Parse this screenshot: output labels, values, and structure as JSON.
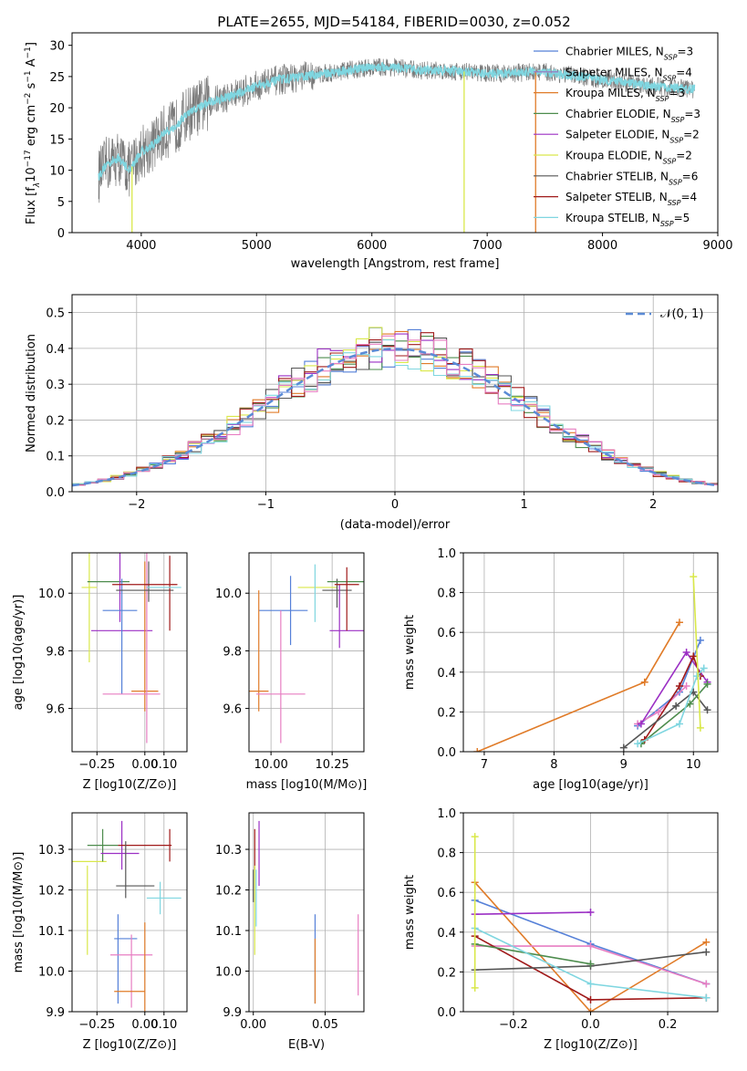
{
  "chart_data": [
    {
      "id": "spectrum",
      "type": "line",
      "title": "PLATE=2655, MJD=54184, FIBERID=0030, z=0.052",
      "xlabel": "wavelength [Angstrom, rest frame]",
      "ylabel_parts": [
        "Flux [f",
        "λ",
        "10",
        "−17",
        " erg cm",
        "−2",
        " s",
        "−1",
        " A",
        "−1",
        "]"
      ],
      "xlim": [
        3400,
        9000
      ],
      "ylim": [
        0,
        32
      ],
      "xticks": [
        4000,
        5000,
        6000,
        7000,
        8000,
        9000
      ],
      "yticks": [
        0,
        5,
        10,
        15,
        20,
        25,
        30
      ],
      "legend_position": "top-right",
      "envelope": {
        "x": [
          3630,
          3700,
          3800,
          3900,
          4000,
          4100,
          4200,
          4300,
          4400,
          4500,
          4600,
          4800,
          5000,
          5200,
          5400,
          5600,
          5800,
          6000,
          6200,
          6400,
          6600,
          6800,
          7000,
          7200,
          7400,
          7600,
          7800,
          8000,
          8200,
          8400,
          8600,
          8800
        ],
        "y": [
          9,
          11,
          12,
          10,
          13,
          14,
          16,
          17,
          19,
          20,
          21,
          22,
          23.5,
          24.5,
          25,
          25.5,
          26,
          26.5,
          26.5,
          26,
          26,
          25.8,
          25.5,
          25.5,
          25.8,
          25.5,
          25,
          24.5,
          24,
          23.5,
          23.2,
          23
        ]
      },
      "drops": [
        {
          "x": 3920,
          "y": 0
        },
        {
          "x": 6800,
          "y": 0
        },
        {
          "x": 7420,
          "y": 0
        }
      ],
      "grid": false
    },
    {
      "id": "residuals",
      "type": "histogram",
      "xlabel": "(data-model)/error",
      "ylabel": "Normed distribution",
      "xlim": [
        -2.5,
        2.5
      ],
      "ylim": [
        0,
        0.55
      ],
      "xticks": [
        -2,
        -1,
        0,
        1,
        2
      ],
      "yticks": [
        0,
        0.1,
        0.2,
        0.3,
        0.4,
        0.5
      ],
      "grid": true,
      "legend_position": "top-right",
      "reference_label": "𝒩(0, 1)",
      "bin_width": 0.1
    },
    {
      "id": "age-vs-Z",
      "type": "errorbar",
      "xlabel": "Z [log10(Z/Z⊙)]",
      "ylabel": "age  [log10(age/yr)]",
      "xlim": [
        -0.38,
        0.22
      ],
      "ylim": [
        9.45,
        10.14
      ],
      "xticks": [
        -0.25,
        0,
        0.1
      ],
      "yticks": [
        9.6,
        9.8,
        10.0
      ],
      "grid": true,
      "points": [
        {
          "c": "#d9e84a",
          "x": -0.29,
          "y": 10.02,
          "xe": 0.04,
          "ye": 0.26
        },
        {
          "c": "#4d8c4d",
          "x": -0.19,
          "y": 10.04,
          "xe": 0.11,
          "ye": 0.0
        },
        {
          "c": "#9b2fc4",
          "x": -0.12,
          "y": 9.87,
          "xe": 0.16,
          "ye": 0.0
        },
        {
          "c": "#9b2fc4",
          "x": -0.13,
          "y": 10.02,
          "xe": 0.0,
          "ye": 0.12
        },
        {
          "c": "#5580d8",
          "x": -0.13,
          "y": 9.94,
          "xe": 0.09,
          "ye": 0.0
        },
        {
          "c": "#5580d8",
          "x": -0.12,
          "y": 9.85,
          "xe": 0.0,
          "ye": 0.2
        },
        {
          "c": "#e07b28",
          "x": 0.0,
          "y": 9.66,
          "xe": 0.07,
          "ye": 0.0
        },
        {
          "c": "#e07b28",
          "x": 0.0,
          "y": 9.85,
          "xe": 0.0,
          "ye": 0.26
        },
        {
          "c": "#e77ec2",
          "x": -0.07,
          "y": 9.65,
          "xe": 0.15,
          "ye": 0.0
        },
        {
          "c": "#e77ec2",
          "x": 0.01,
          "y": 9.85,
          "xe": 0.0,
          "ye": 0.37
        },
        {
          "c": "#555555",
          "x": 0.0,
          "y": 10.01,
          "xe": 0.15,
          "ye": 0.0
        },
        {
          "c": "#555555",
          "x": 0.02,
          "y": 10.04,
          "xe": 0.0,
          "ye": 0.07
        },
        {
          "c": "#a01a1a",
          "x": 0.0,
          "y": 10.03,
          "xe": 0.17,
          "ye": 0.0
        },
        {
          "c": "#a01a1a",
          "x": 0.13,
          "y": 10.0,
          "xe": 0.0,
          "ye": 0.13
        },
        {
          "c": "#7fd6e0",
          "x": 0.1,
          "y": 10.02,
          "xe": 0.09,
          "ye": 0.0
        }
      ]
    },
    {
      "id": "age-vs-mass",
      "type": "errorbar",
      "xlabel": "mass [log10(M/M⊙)]",
      "ylabel": "",
      "xlim": [
        9.91,
        10.38
      ],
      "ylim": [
        9.45,
        10.14
      ],
      "xticks": [
        10.0,
        10.25
      ],
      "yticks": [
        9.6,
        9.8,
        10.0
      ],
      "grid": true,
      "points": [
        {
          "c": "#5580d8",
          "x": 10.05,
          "y": 9.94,
          "xe": 0.1,
          "ye": 0.0
        },
        {
          "c": "#5580d8",
          "x": 10.08,
          "y": 9.94,
          "xe": 0.0,
          "ye": 0.12
        },
        {
          "c": "#e07b28",
          "x": 9.95,
          "y": 9.66,
          "xe": 0.04,
          "ye": 0.0
        },
        {
          "c": "#e07b28",
          "x": 9.95,
          "y": 9.8,
          "xe": 0.0,
          "ye": 0.21
        },
        {
          "c": "#e77ec2",
          "x": 10.04,
          "y": 9.65,
          "xe": 0.1,
          "ye": 0.0
        },
        {
          "c": "#e77ec2",
          "x": 10.04,
          "y": 9.71,
          "xe": 0.0,
          "ye": 0.23
        },
        {
          "c": "#d9e84a",
          "x": 10.19,
          "y": 10.02,
          "xe": 0.08,
          "ye": 0.0
        },
        {
          "c": "#7fd6e0",
          "x": 10.18,
          "y": 10.0,
          "xe": 0.0,
          "ye": 0.1
        },
        {
          "c": "#555555",
          "x": 10.27,
          "y": 10.01,
          "xe": 0.06,
          "ye": 0.0
        },
        {
          "c": "#555555",
          "x": 10.27,
          "y": 10.0,
          "xe": 0.0,
          "ye": 0.05
        },
        {
          "c": "#4d8c4d",
          "x": 10.31,
          "y": 10.04,
          "xe": 0.08,
          "ye": 0.0
        },
        {
          "c": "#9b2fc4",
          "x": 10.31,
          "y": 9.87,
          "xe": 0.07,
          "ye": 0.0
        },
        {
          "c": "#9b2fc4",
          "x": 10.28,
          "y": 9.92,
          "xe": 0.0,
          "ye": 0.11
        },
        {
          "c": "#a01a1a",
          "x": 10.31,
          "y": 10.03,
          "xe": 0.05,
          "ye": 0.0
        },
        {
          "c": "#a01a1a",
          "x": 10.31,
          "y": 9.98,
          "xe": 0.0,
          "ye": 0.11
        }
      ]
    },
    {
      "id": "weight-vs-age",
      "type": "line",
      "xlabel": "age  [log10(age/yr)]",
      "ylabel": "mass weight",
      "xlim": [
        6.7,
        10.35
      ],
      "ylim": [
        0,
        1
      ],
      "xticks": [
        7,
        8,
        9,
        10
      ],
      "yticks": [
        0.0,
        0.2,
        0.4,
        0.6,
        0.8,
        1.0
      ],
      "grid": true,
      "series": [
        {
          "c": "#e07b28",
          "x": [
            6.9,
            9.3,
            9.8
          ],
          "y": [
            0.0,
            0.35,
            0.65
          ]
        },
        {
          "c": "#5580d8",
          "x": [
            9.2,
            9.8,
            10.1
          ],
          "y": [
            0.13,
            0.3,
            0.56
          ]
        },
        {
          "c": "#e77ec2",
          "x": [
            9.2,
            9.5,
            9.9
          ],
          "y": [
            0.14,
            0.2,
            0.33
          ]
        },
        {
          "c": "#9b2fc4",
          "x": [
            9.25,
            9.9,
            10.2
          ],
          "y": [
            0.14,
            0.5,
            0.35
          ]
        },
        {
          "c": "#a01a1a",
          "x": [
            9.3,
            9.8,
            10.0,
            10.1
          ],
          "y": [
            0.06,
            0.33,
            0.48,
            0.38
          ]
        },
        {
          "c": "#555555",
          "x": [
            9.0,
            9.75,
            10.0,
            10.2
          ],
          "y": [
            0.02,
            0.23,
            0.3,
            0.21
          ]
        },
        {
          "c": "#4d8c4d",
          "x": [
            9.25,
            9.95,
            10.2
          ],
          "y": [
            0.04,
            0.24,
            0.34
          ]
        },
        {
          "c": "#7fd6e0",
          "x": [
            9.2,
            9.8,
            10.05,
            10.15
          ],
          "y": [
            0.04,
            0.14,
            0.38,
            0.42
          ]
        },
        {
          "c": "#d9e84a",
          "x": [
            10.0,
            10.1
          ],
          "y": [
            0.88,
            0.12
          ]
        }
      ]
    },
    {
      "id": "mass-vs-Z",
      "type": "errorbar",
      "xlabel": "Z [log10(Z/Z⊙)]",
      "ylabel": "mass [log10(M/M⊙)]",
      "xlim": [
        -0.38,
        0.22
      ],
      "ylim": [
        9.9,
        10.39
      ],
      "xticks": [
        -0.25,
        0,
        0.1
      ],
      "yticks": [
        9.9,
        10.0,
        10.1,
        10.2,
        10.3
      ],
      "grid": true,
      "points": [
        {
          "c": "#d9e84a",
          "x": -0.3,
          "y": 10.27,
          "xe": 0.1,
          "ye": 0.0
        },
        {
          "c": "#d9e84a",
          "x": -0.3,
          "y": 10.15,
          "xe": 0.0,
          "ye": 0.11
        },
        {
          "c": "#4d8c4d",
          "x": -0.22,
          "y": 10.31,
          "xe": 0.08,
          "ye": 0.0
        },
        {
          "c": "#4d8c4d",
          "x": -0.22,
          "y": 10.31,
          "xe": 0.0,
          "ye": 0.04
        },
        {
          "c": "#9b2fc4",
          "x": -0.13,
          "y": 10.29,
          "xe": 0.1,
          "ye": 0.0
        },
        {
          "c": "#9b2fc4",
          "x": -0.12,
          "y": 10.31,
          "xe": 0.0,
          "ye": 0.06
        },
        {
          "c": "#a01a1a",
          "x": 0.0,
          "y": 10.31,
          "xe": 0.14,
          "ye": 0.0
        },
        {
          "c": "#a01a1a",
          "x": 0.13,
          "y": 10.31,
          "xe": 0.0,
          "ye": 0.04
        },
        {
          "c": "#555555",
          "x": -0.05,
          "y": 10.21,
          "xe": 0.1,
          "ye": 0.0
        },
        {
          "c": "#555555",
          "x": -0.1,
          "y": 10.25,
          "xe": 0.0,
          "ye": 0.07
        },
        {
          "c": "#7fd6e0",
          "x": 0.1,
          "y": 10.18,
          "xe": 0.09,
          "ye": 0.0
        },
        {
          "c": "#7fd6e0",
          "x": 0.08,
          "y": 10.18,
          "xe": 0.0,
          "ye": 0.04
        },
        {
          "c": "#5580d8",
          "x": -0.1,
          "y": 10.08,
          "xe": 0.06,
          "ye": 0.0
        },
        {
          "c": "#5580d8",
          "x": -0.14,
          "y": 10.03,
          "xe": 0.0,
          "ye": 0.11
        },
        {
          "c": "#e77ec2",
          "x": -0.07,
          "y": 10.04,
          "xe": 0.11,
          "ye": 0.0
        },
        {
          "c": "#e77ec2",
          "x": -0.07,
          "y": 10.0,
          "xe": 0.0,
          "ye": 0.09
        },
        {
          "c": "#e07b28",
          "x": -0.08,
          "y": 9.95,
          "xe": 0.08,
          "ye": 0.0
        },
        {
          "c": "#e07b28",
          "x": 0.0,
          "y": 10.0,
          "xe": 0.0,
          "ye": 0.12
        }
      ]
    },
    {
      "id": "mass-vs-ebv",
      "type": "errorbar",
      "xlabel": "E(B-V)",
      "ylabel": "",
      "xlim": [
        -0.003,
        0.077
      ],
      "ylim": [
        9.9,
        10.39
      ],
      "xticks": [
        0.0,
        0.05
      ],
      "yticks": [
        9.9,
        10.0,
        10.1,
        10.2,
        10.3
      ],
      "grid": true,
      "points": [
        {
          "c": "#a01a1a",
          "x": 0.001,
          "y": 10.3,
          "xe": 0.0,
          "ye": 0.05
        },
        {
          "c": "#9b2fc4",
          "x": 0.004,
          "y": 10.29,
          "xe": 0.0,
          "ye": 0.08
        },
        {
          "c": "#7fd6e0",
          "x": 0.002,
          "y": 10.18,
          "xe": 0.0,
          "ye": 0.07
        },
        {
          "c": "#d9e84a",
          "x": 0.001,
          "y": 10.15,
          "xe": 0.0,
          "ye": 0.11
        },
        {
          "c": "#555555",
          "x": 0.0,
          "y": 10.21,
          "xe": 0.0,
          "ye": 0.04
        },
        {
          "c": "#5580d8",
          "x": 0.043,
          "y": 10.03,
          "xe": 0.0,
          "ye": 0.11
        },
        {
          "c": "#e07b28",
          "x": 0.043,
          "y": 10.0,
          "xe": 0.0,
          "ye": 0.08
        },
        {
          "c": "#e77ec2",
          "x": 0.073,
          "y": 10.04,
          "xe": 0.0,
          "ye": 0.1
        }
      ]
    },
    {
      "id": "weight-vs-Z",
      "type": "line",
      "xlabel": "Z [log10(Z/Z⊙)]",
      "ylabel": "mass weight",
      "xlim": [
        -0.33,
        0.33
      ],
      "ylim": [
        0,
        1
      ],
      "xticks": [
        -0.2,
        0.0,
        0.2
      ],
      "yticks": [
        0.0,
        0.2,
        0.4,
        0.6,
        0.8,
        1.0
      ],
      "grid": true,
      "series": [
        {
          "c": "#5580d8",
          "x": [
            -0.3,
            0.0,
            0.3
          ],
          "y": [
            0.56,
            0.34,
            0.14
          ]
        },
        {
          "c": "#e07b28",
          "x": [
            -0.3,
            0.0,
            0.3
          ],
          "y": [
            0.65,
            0.0,
            0.35
          ]
        },
        {
          "c": "#9b2fc4",
          "x": [
            -0.3,
            0.0
          ],
          "y": [
            0.49,
            0.5
          ]
        },
        {
          "c": "#e77ec2",
          "x": [
            -0.3,
            0.0,
            0.3
          ],
          "y": [
            0.33,
            0.33,
            0.14
          ]
        },
        {
          "c": "#a01a1a",
          "x": [
            -0.3,
            0.0,
            0.3
          ],
          "y": [
            0.38,
            0.06,
            0.07
          ]
        },
        {
          "c": "#555555",
          "x": [
            -0.3,
            0.0,
            0.3
          ],
          "y": [
            0.21,
            0.23,
            0.3
          ]
        },
        {
          "c": "#4d8c4d",
          "x": [
            -0.3,
            0.0
          ],
          "y": [
            0.34,
            0.24
          ]
        },
        {
          "c": "#7fd6e0",
          "x": [
            -0.3,
            0.0,
            0.3
          ],
          "y": [
            0.42,
            0.14,
            0.07
          ]
        },
        {
          "c": "#d9e84a",
          "x": [
            -0.3,
            -0.3
          ],
          "y": [
            0.88,
            0.12
          ]
        }
      ]
    }
  ],
  "legend": [
    {
      "label": "Chabrier MILES, N",
      "sub": "SSP",
      "suffix": "=3",
      "color": "#5580d8"
    },
    {
      "label": "Salpeter MILES, N",
      "sub": "SSP",
      "suffix": "=4",
      "color": "#9b6fc0"
    },
    {
      "label": "Kroupa MILES, N",
      "sub": "SSP",
      "suffix": "=3",
      "color": "#e07b28"
    },
    {
      "label": "Chabrier ELODIE, N",
      "sub": "SSP",
      "suffix": "=3",
      "color": "#4d8c4d"
    },
    {
      "label": "Salpeter ELODIE, N",
      "sub": "SSP",
      "suffix": "=2",
      "color": "#9b2fc4"
    },
    {
      "label": "Kroupa ELODIE, N",
      "sub": "SSP",
      "suffix": "=2",
      "color": "#d9e84a"
    },
    {
      "label": "Chabrier STELIB, N",
      "sub": "SSP",
      "suffix": "=6",
      "color": "#555555"
    },
    {
      "label": "Salpeter STELIB, N",
      "sub": "SSP",
      "suffix": "=4",
      "color": "#a01a1a"
    },
    {
      "label": "Kroupa STELIB, N",
      "sub": "SSP",
      "suffix": "=5",
      "color": "#7fd6e0"
    }
  ],
  "colors": {
    "hist_series": [
      "#5580d8",
      "#e07b28",
      "#4d8c4d",
      "#9b2fc4",
      "#d9e84a",
      "#555555",
      "#a01a1a",
      "#7fd6e0",
      "#e77ec2"
    ],
    "reference": "#5b8bd6",
    "grid": "#b0b0b0",
    "spectrum_data": "#7a7a7a",
    "spectrum_model": "#7fd6e0"
  }
}
